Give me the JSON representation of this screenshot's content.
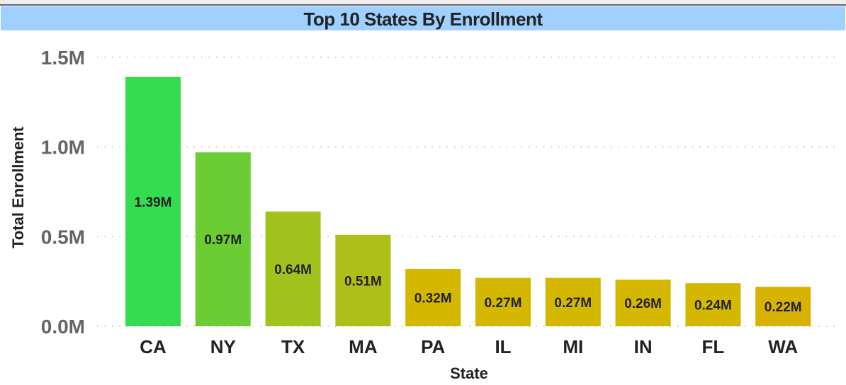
{
  "chart_data": {
    "type": "bar",
    "title": "Top 10 States By Enrollment",
    "xlabel": "State",
    "ylabel": "Total Enrollment",
    "ylim": [
      0,
      1.5
    ],
    "y_unit": "M",
    "yticks": [
      "0.0M",
      "0.5M",
      "1.0M",
      "1.5M"
    ],
    "ytick_values": [
      0,
      0.5,
      1.0,
      1.5
    ],
    "grid": true,
    "categories": [
      "CA",
      "NY",
      "TX",
      "MA",
      "PA",
      "IL",
      "MI",
      "IN",
      "FL",
      "WA"
    ],
    "values": [
      1.39,
      0.97,
      0.64,
      0.51,
      0.32,
      0.27,
      0.27,
      0.26,
      0.24,
      0.22
    ],
    "data_labels": [
      "1.39M",
      "0.97M",
      "0.64M",
      "0.51M",
      "0.32M",
      "0.27M",
      "0.27M",
      "0.26M",
      "0.24M",
      "0.22M"
    ],
    "colors": [
      "#36dc50",
      "#6ccc34",
      "#a2c31e",
      "#b0bf18",
      "#d4b800",
      "#d4b800",
      "#d4b800",
      "#d4b800",
      "#d4b800",
      "#d8b200"
    ]
  }
}
